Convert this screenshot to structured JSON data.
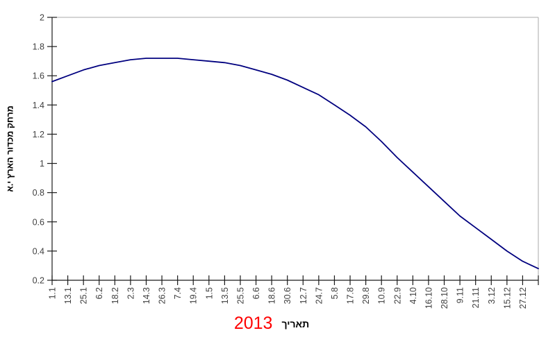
{
  "chart_data": {
    "type": "line",
    "title": "",
    "xlabel": "תאריך",
    "x_year_label": "2013",
    "ylabel": "מרחק מכדור הארץ י.א",
    "categories": [
      "1.1",
      "13.1",
      "25.1",
      "6.2",
      "18.2",
      "2.3",
      "14.3",
      "26.3",
      "7.4",
      "19.4",
      "1.5",
      "13.5",
      "25.5",
      "6.6",
      "18.6",
      "30.6",
      "12.7",
      "24.7",
      "5.8",
      "17.8",
      "29.8",
      "10.9",
      "22.9",
      "4.10",
      "16.10",
      "28.10",
      "9.11",
      "21.11",
      "3.12",
      "15.12",
      "27.12"
    ],
    "values": [
      1.56,
      1.6,
      1.64,
      1.67,
      1.69,
      1.71,
      1.72,
      1.72,
      1.72,
      1.71,
      1.7,
      1.69,
      1.67,
      1.64,
      1.61,
      1.57,
      1.52,
      1.47,
      1.4,
      1.33,
      1.25,
      1.15,
      1.04,
      0.94,
      0.84,
      0.74,
      0.64,
      0.56,
      0.48,
      0.4,
      0.33
    ],
    "end_value": 0.28,
    "ylim": [
      0.2,
      2
    ],
    "ytick_labels": [
      "2",
      "1.8",
      "1.6",
      "1.4",
      "1.2",
      "1",
      "0.8",
      "0.6",
      "0.4",
      "0.2"
    ],
    "grid": false,
    "legend": null,
    "line_color": "#00007F",
    "year_color": "#FF0000",
    "axis_color": "#1a1a1a",
    "border_color": "#aaaaaa"
  }
}
